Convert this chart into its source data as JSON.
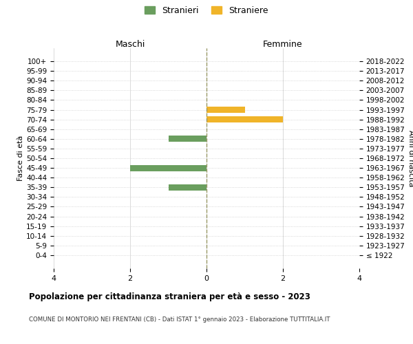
{
  "age_groups": [
    "100+",
    "95-99",
    "90-94",
    "85-89",
    "80-84",
    "75-79",
    "70-74",
    "65-69",
    "60-64",
    "55-59",
    "50-54",
    "45-49",
    "40-44",
    "35-39",
    "30-34",
    "25-29",
    "20-24",
    "15-19",
    "10-14",
    "5-9",
    "0-4"
  ],
  "birth_years": [
    "≤ 1922",
    "1923-1927",
    "1928-1932",
    "1933-1937",
    "1938-1942",
    "1943-1947",
    "1948-1952",
    "1953-1957",
    "1958-1962",
    "1963-1967",
    "1968-1972",
    "1973-1977",
    "1978-1982",
    "1983-1987",
    "1988-1992",
    "1993-1997",
    "1998-2002",
    "2003-2007",
    "2008-2012",
    "2013-2017",
    "2018-2022"
  ],
  "maschi": [
    0,
    0,
    0,
    0,
    0,
    0,
    0,
    0,
    1,
    0,
    0,
    2,
    0,
    1,
    0,
    0,
    0,
    0,
    0,
    0,
    0
  ],
  "femmine": [
    0,
    0,
    0,
    0,
    0,
    1,
    2,
    0,
    0,
    0,
    0,
    0,
    0,
    0,
    0,
    0,
    0,
    0,
    0,
    0,
    0
  ],
  "maschi_color": "#6a9e5e",
  "femmine_color": "#f0b429",
  "title": "Popolazione per cittadinanza straniera per età e sesso - 2023",
  "subtitle": "COMUNE DI MONTORIO NEI FRENTANI (CB) - Dati ISTAT 1° gennaio 2023 - Elaborazione TUTTITALIA.IT",
  "xlabel_left": "Maschi",
  "xlabel_right": "Femmine",
  "ylabel_left": "Fasce di età",
  "ylabel_right": "Anni di nascita",
  "legend_stranieri": "Stranieri",
  "legend_straniere": "Straniere",
  "xlim": 4,
  "background_color": "#ffffff",
  "grid_color": "#cccccc"
}
